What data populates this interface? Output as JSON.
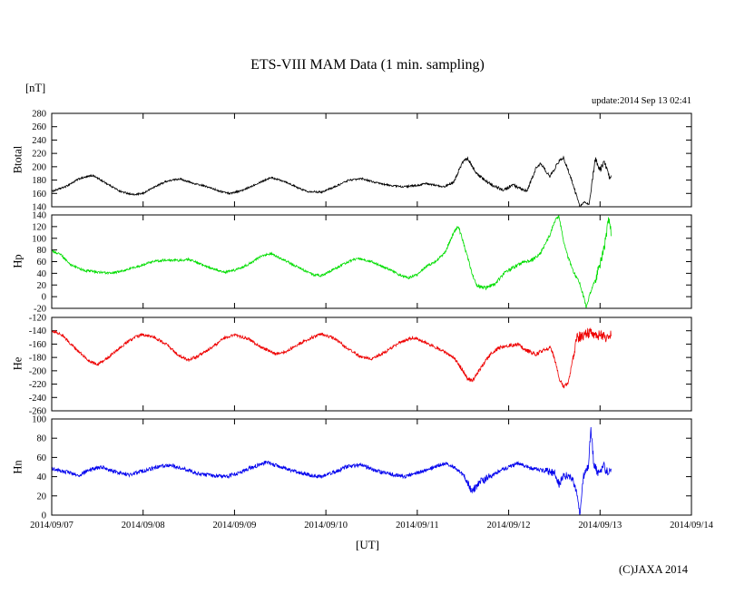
{
  "labels": {
    "unit": "[nT]",
    "update": "update:2014 Sep 13 02:41",
    "xaxis": "[UT]",
    "copyright": "(C)JAXA 2014"
  },
  "chart_data": {
    "type": "line",
    "title": "ETS-VIII MAM Data (1 min. sampling)",
    "xlabel": "[UT]",
    "ylabel_unit": "[nT]",
    "legend": "none",
    "grid": false,
    "x_tick_labels": [
      "2014/09/07",
      "2014/09/08",
      "2014/09/09",
      "2014/09/10",
      "2014/09/11",
      "2014/09/12",
      "2014/09/13",
      "2014/09/14"
    ],
    "x_range_days": [
      0,
      7
    ],
    "data_end_day": 6.12,
    "panels": [
      {
        "name": "Btotal",
        "ylabel": "Btotal",
        "color": "#000000",
        "ylim": [
          140,
          280
        ],
        "ytick_step": 20,
        "noise": 1.3,
        "noise_segments": [
          [
            4.35,
            5.75,
            2.4
          ],
          [
            5.9,
            6.12,
            5.0
          ]
        ],
        "points": [
          [
            0,
            163
          ],
          [
            0.15,
            170
          ],
          [
            0.3,
            182
          ],
          [
            0.45,
            187
          ],
          [
            0.6,
            175
          ],
          [
            0.75,
            163
          ],
          [
            0.9,
            158
          ],
          [
            1.0,
            160
          ],
          [
            1.1,
            168
          ],
          [
            1.25,
            178
          ],
          [
            1.4,
            182
          ],
          [
            1.55,
            175
          ],
          [
            1.7,
            170
          ],
          [
            1.85,
            163
          ],
          [
            1.95,
            160
          ],
          [
            2.1,
            165
          ],
          [
            2.25,
            175
          ],
          [
            2.4,
            184
          ],
          [
            2.55,
            178
          ],
          [
            2.7,
            168
          ],
          [
            2.8,
            163
          ],
          [
            2.95,
            162
          ],
          [
            3.1,
            170
          ],
          [
            3.25,
            180
          ],
          [
            3.4,
            182
          ],
          [
            3.55,
            176
          ],
          [
            3.7,
            172
          ],
          [
            3.85,
            170
          ],
          [
            4.0,
            172
          ],
          [
            4.1,
            175
          ],
          [
            4.2,
            172
          ],
          [
            4.3,
            170
          ],
          [
            4.4,
            178
          ],
          [
            4.5,
            208
          ],
          [
            4.55,
            212
          ],
          [
            4.65,
            190
          ],
          [
            4.75,
            178
          ],
          [
            4.85,
            170
          ],
          [
            4.95,
            165
          ],
          [
            5.05,
            173
          ],
          [
            5.1,
            168
          ],
          [
            5.2,
            163
          ],
          [
            5.3,
            198
          ],
          [
            5.35,
            205
          ],
          [
            5.45,
            185
          ],
          [
            5.55,
            208
          ],
          [
            5.6,
            213
          ],
          [
            5.65,
            196
          ],
          [
            5.7,
            175
          ],
          [
            5.78,
            140
          ],
          [
            5.83,
            148
          ],
          [
            5.88,
            143
          ],
          [
            5.95,
            213
          ],
          [
            6.0,
            195
          ],
          [
            6.05,
            208
          ],
          [
            6.1,
            185
          ],
          [
            6.12,
            188
          ]
        ]
      },
      {
        "name": "Hp",
        "ylabel": "Hp",
        "color": "#00dd00",
        "ylim": [
          -20,
          140
        ],
        "ytick_step": 20,
        "noise": 2.0,
        "noise_segments": [
          [
            4.3,
            5.9,
            3.0
          ],
          [
            5.95,
            6.12,
            9.0
          ]
        ],
        "points": [
          [
            0,
            78
          ],
          [
            0.1,
            72
          ],
          [
            0.2,
            55
          ],
          [
            0.35,
            45
          ],
          [
            0.5,
            42
          ],
          [
            0.65,
            40
          ],
          [
            0.8,
            45
          ],
          [
            0.95,
            52
          ],
          [
            1.1,
            60
          ],
          [
            1.25,
            63
          ],
          [
            1.4,
            62
          ],
          [
            1.5,
            64
          ],
          [
            1.6,
            58
          ],
          [
            1.75,
            48
          ],
          [
            1.9,
            42
          ],
          [
            2.0,
            45
          ],
          [
            2.15,
            55
          ],
          [
            2.3,
            70
          ],
          [
            2.4,
            74
          ],
          [
            2.55,
            62
          ],
          [
            2.7,
            50
          ],
          [
            2.85,
            38
          ],
          [
            2.95,
            36
          ],
          [
            3.1,
            48
          ],
          [
            3.25,
            60
          ],
          [
            3.35,
            66
          ],
          [
            3.5,
            60
          ],
          [
            3.65,
            50
          ],
          [
            3.8,
            38
          ],
          [
            3.9,
            32
          ],
          [
            4.0,
            38
          ],
          [
            4.1,
            52
          ],
          [
            4.2,
            60
          ],
          [
            4.3,
            75
          ],
          [
            4.4,
            110
          ],
          [
            4.45,
            120
          ],
          [
            4.5,
            95
          ],
          [
            4.6,
            40
          ],
          [
            4.65,
            18
          ],
          [
            4.75,
            15
          ],
          [
            4.85,
            22
          ],
          [
            4.95,
            40
          ],
          [
            5.05,
            50
          ],
          [
            5.15,
            58
          ],
          [
            5.25,
            62
          ],
          [
            5.35,
            75
          ],
          [
            5.45,
            105
          ],
          [
            5.5,
            128
          ],
          [
            5.55,
            138
          ],
          [
            5.6,
            95
          ],
          [
            5.65,
            68
          ],
          [
            5.7,
            45
          ],
          [
            5.78,
            22
          ],
          [
            5.85,
            -18
          ],
          [
            5.9,
            10
          ],
          [
            5.95,
            30
          ],
          [
            6.0,
            55
          ],
          [
            6.05,
            90
          ],
          [
            6.1,
            135
          ],
          [
            6.12,
            110
          ]
        ]
      },
      {
        "name": "He",
        "ylabel": "He",
        "color": "#ee0000",
        "ylim": [
          -260,
          -120
        ],
        "ytick_step": 20,
        "noise": 2.2,
        "noise_segments": [
          [
            4.4,
            5.7,
            3.0
          ],
          [
            5.7,
            6.12,
            8.0
          ]
        ],
        "points": [
          [
            0,
            -140
          ],
          [
            0.1,
            -145
          ],
          [
            0.25,
            -165
          ],
          [
            0.4,
            -185
          ],
          [
            0.5,
            -190
          ],
          [
            0.6,
            -182
          ],
          [
            0.75,
            -165
          ],
          [
            0.9,
            -150
          ],
          [
            1.0,
            -146
          ],
          [
            1.1,
            -148
          ],
          [
            1.25,
            -160
          ],
          [
            1.4,
            -178
          ],
          [
            1.5,
            -184
          ],
          [
            1.6,
            -178
          ],
          [
            1.75,
            -165
          ],
          [
            1.9,
            -150
          ],
          [
            2.0,
            -146
          ],
          [
            2.15,
            -152
          ],
          [
            2.3,
            -165
          ],
          [
            2.45,
            -175
          ],
          [
            2.55,
            -172
          ],
          [
            2.7,
            -160
          ],
          [
            2.85,
            -150
          ],
          [
            2.95,
            -145
          ],
          [
            3.1,
            -152
          ],
          [
            3.25,
            -168
          ],
          [
            3.4,
            -180
          ],
          [
            3.5,
            -182
          ],
          [
            3.65,
            -172
          ],
          [
            3.8,
            -158
          ],
          [
            3.95,
            -150
          ],
          [
            4.05,
            -155
          ],
          [
            4.2,
            -165
          ],
          [
            4.3,
            -172
          ],
          [
            4.4,
            -180
          ],
          [
            4.5,
            -200
          ],
          [
            4.55,
            -212
          ],
          [
            4.6,
            -215
          ],
          [
            4.7,
            -195
          ],
          [
            4.8,
            -175
          ],
          [
            4.9,
            -165
          ],
          [
            5.0,
            -162
          ],
          [
            5.1,
            -160
          ],
          [
            5.2,
            -170
          ],
          [
            5.3,
            -175
          ],
          [
            5.4,
            -168
          ],
          [
            5.45,
            -165
          ],
          [
            5.5,
            -180
          ],
          [
            5.55,
            -210
          ],
          [
            5.6,
            -225
          ],
          [
            5.65,
            -218
          ],
          [
            5.7,
            -185
          ],
          [
            5.75,
            -150
          ],
          [
            5.8,
            -148
          ],
          [
            5.85,
            -145
          ],
          [
            5.9,
            -142
          ],
          [
            5.95,
            -148
          ],
          [
            6.0,
            -145
          ],
          [
            6.05,
            -150
          ],
          [
            6.1,
            -148
          ],
          [
            6.12,
            -145
          ]
        ]
      },
      {
        "name": "Hn",
        "ylabel": "Hn",
        "color": "#0000ee",
        "ylim": [
          0,
          100
        ],
        "ytick_step": 20,
        "noise": 2.0,
        "noise_segments": [
          [
            4.5,
            4.8,
            4.0
          ],
          [
            5.4,
            5.75,
            4.0
          ],
          [
            5.8,
            6.12,
            5.0
          ]
        ],
        "points": [
          [
            0,
            48
          ],
          [
            0.15,
            45
          ],
          [
            0.3,
            42
          ],
          [
            0.45,
            48
          ],
          [
            0.55,
            50
          ],
          [
            0.7,
            45
          ],
          [
            0.85,
            42
          ],
          [
            1.0,
            46
          ],
          [
            1.15,
            50
          ],
          [
            1.3,
            52
          ],
          [
            1.45,
            48
          ],
          [
            1.6,
            43
          ],
          [
            1.75,
            41
          ],
          [
            1.9,
            40
          ],
          [
            2.05,
            44
          ],
          [
            2.2,
            50
          ],
          [
            2.35,
            55
          ],
          [
            2.5,
            50
          ],
          [
            2.65,
            46
          ],
          [
            2.8,
            42
          ],
          [
            2.95,
            40
          ],
          [
            3.1,
            45
          ],
          [
            3.25,
            51
          ],
          [
            3.4,
            52
          ],
          [
            3.55,
            46
          ],
          [
            3.7,
            43
          ],
          [
            3.85,
            40
          ],
          [
            4.0,
            44
          ],
          [
            4.15,
            49
          ],
          [
            4.3,
            54
          ],
          [
            4.4,
            50
          ],
          [
            4.5,
            42
          ],
          [
            4.6,
            25
          ],
          [
            4.7,
            35
          ],
          [
            4.8,
            40
          ],
          [
            4.9,
            46
          ],
          [
            5.0,
            50
          ],
          [
            5.1,
            54
          ],
          [
            5.2,
            50
          ],
          [
            5.3,
            48
          ],
          [
            5.4,
            46
          ],
          [
            5.5,
            44
          ],
          [
            5.55,
            32
          ],
          [
            5.6,
            40
          ],
          [
            5.65,
            42
          ],
          [
            5.7,
            38
          ],
          [
            5.75,
            20
          ],
          [
            5.78,
            0
          ],
          [
            5.82,
            40
          ],
          [
            5.87,
            50
          ],
          [
            5.9,
            90
          ],
          [
            5.93,
            55
          ],
          [
            5.98,
            42
          ],
          [
            6.03,
            52
          ],
          [
            6.08,
            45
          ],
          [
            6.12,
            46
          ]
        ]
      }
    ]
  }
}
